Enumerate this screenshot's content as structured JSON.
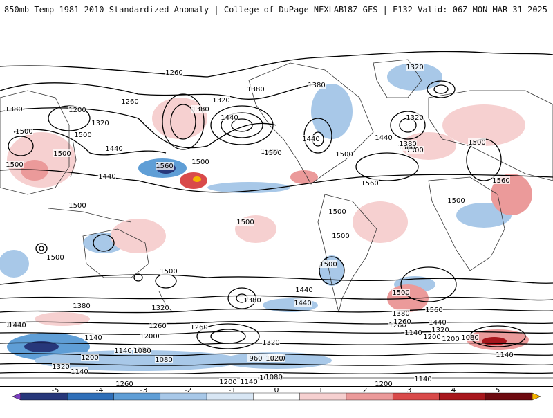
{
  "header": {
    "title": "850mb Temp 1981-2010 Standardized Anomaly | College of DuPage NEXLAB",
    "run_info": "18Z GFS | F132 Valid: 06Z MON MAR 31 2025"
  },
  "colorbar": {
    "ticks": [
      "-5",
      "-4",
      "-3",
      "-2",
      "-1",
      "0",
      "1",
      "2",
      "3",
      "4",
      "5"
    ],
    "colors": [
      "#7b3fbf",
      "#27377a",
      "#2f6fb8",
      "#5f9ed6",
      "#a8c8e8",
      "#d8e6f4",
      "#ffffff",
      "#f6d0d0",
      "#eb9a9a",
      "#d94a4a",
      "#a8161c",
      "#6e0a10",
      "#f5b400"
    ]
  },
  "contour_labels": [
    "1260",
    "1320",
    "1380",
    "1440",
    "1200",
    "1260",
    "1380",
    "1320",
    "1440",
    "1500",
    "1560",
    "1500",
    "1440",
    "1380",
    "1320",
    "1380",
    "1500",
    "1560",
    "1500",
    "1440",
    "1380",
    "1320",
    "1500",
    "1440",
    "1500",
    "1560",
    "1500",
    "1500",
    "1500",
    "1440",
    "1500",
    "1500",
    "1440",
    "1560",
    "1500",
    "1500",
    "1500",
    "1500",
    "1500",
    "1500",
    "1440",
    "1380",
    "1320",
    "1260",
    "1200",
    "1140",
    "1080",
    "1440",
    "1380",
    "1320",
    "1260",
    "1200",
    "1140",
    "1080",
    "1020",
    "960",
    "1200",
    "1140",
    "1080",
    "1200",
    "1260",
    "1320",
    "1140",
    "1080",
    "1020",
    "1440",
    "1380",
    "1320",
    "1260",
    "1200",
    "1140",
    "1080",
    "1140",
    "1200",
    "1260",
    "1140",
    "1080",
    "1200",
    "1140",
    "1080",
    "1500",
    "1380",
    "1500"
  ],
  "contour_label_count_note": ""
}
